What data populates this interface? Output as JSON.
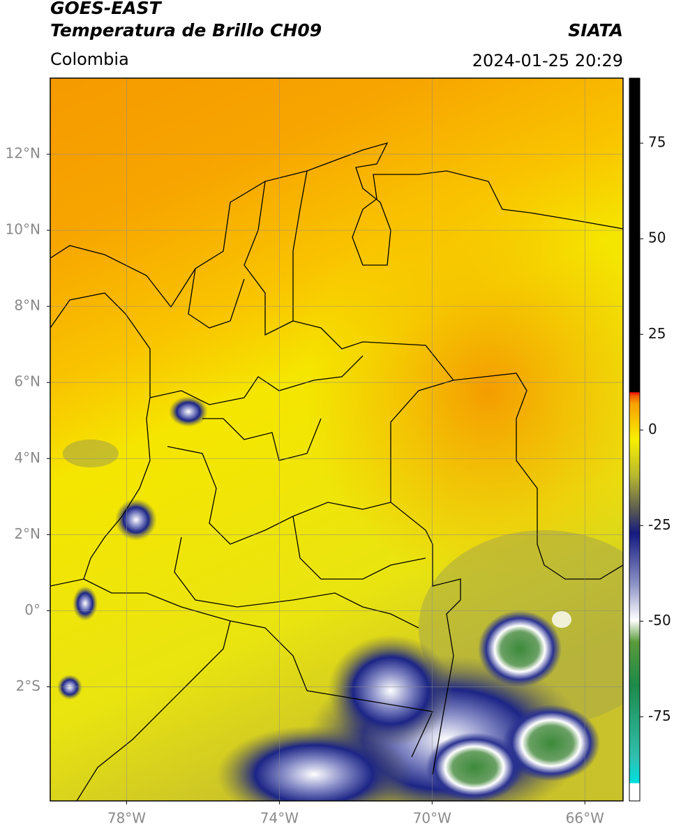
{
  "header": {
    "title": "GOES-EAST",
    "subtitle": "Temperatura de Brillo CH09",
    "source": "SIATA",
    "region": "Colombia",
    "datetime": "2024-01-25 20:29"
  },
  "map": {
    "xlim": [
      -80,
      -65
    ],
    "ylim": [
      -5,
      14
    ],
    "xticks": [
      {
        "value": -78,
        "label": "78°W"
      },
      {
        "value": -74,
        "label": "74°W"
      },
      {
        "value": -70,
        "label": "70°W"
      },
      {
        "value": -66,
        "label": "66°W"
      }
    ],
    "yticks": [
      {
        "value": 12,
        "label": "12°N"
      },
      {
        "value": 10,
        "label": "10°N"
      },
      {
        "value": 8,
        "label": "8°N"
      },
      {
        "value": 6,
        "label": "6°N"
      },
      {
        "value": 4,
        "label": "4°N"
      },
      {
        "value": 2,
        "label": "2°N"
      },
      {
        "value": 0,
        "label": "0°"
      },
      {
        "value": -2,
        "label": "2°S"
      }
    ],
    "grid": true
  },
  "colorbar": {
    "lim": [
      -97,
      92
    ],
    "ticks": [
      75,
      50,
      25,
      0,
      -25,
      -50,
      -75
    ]
  }
}
